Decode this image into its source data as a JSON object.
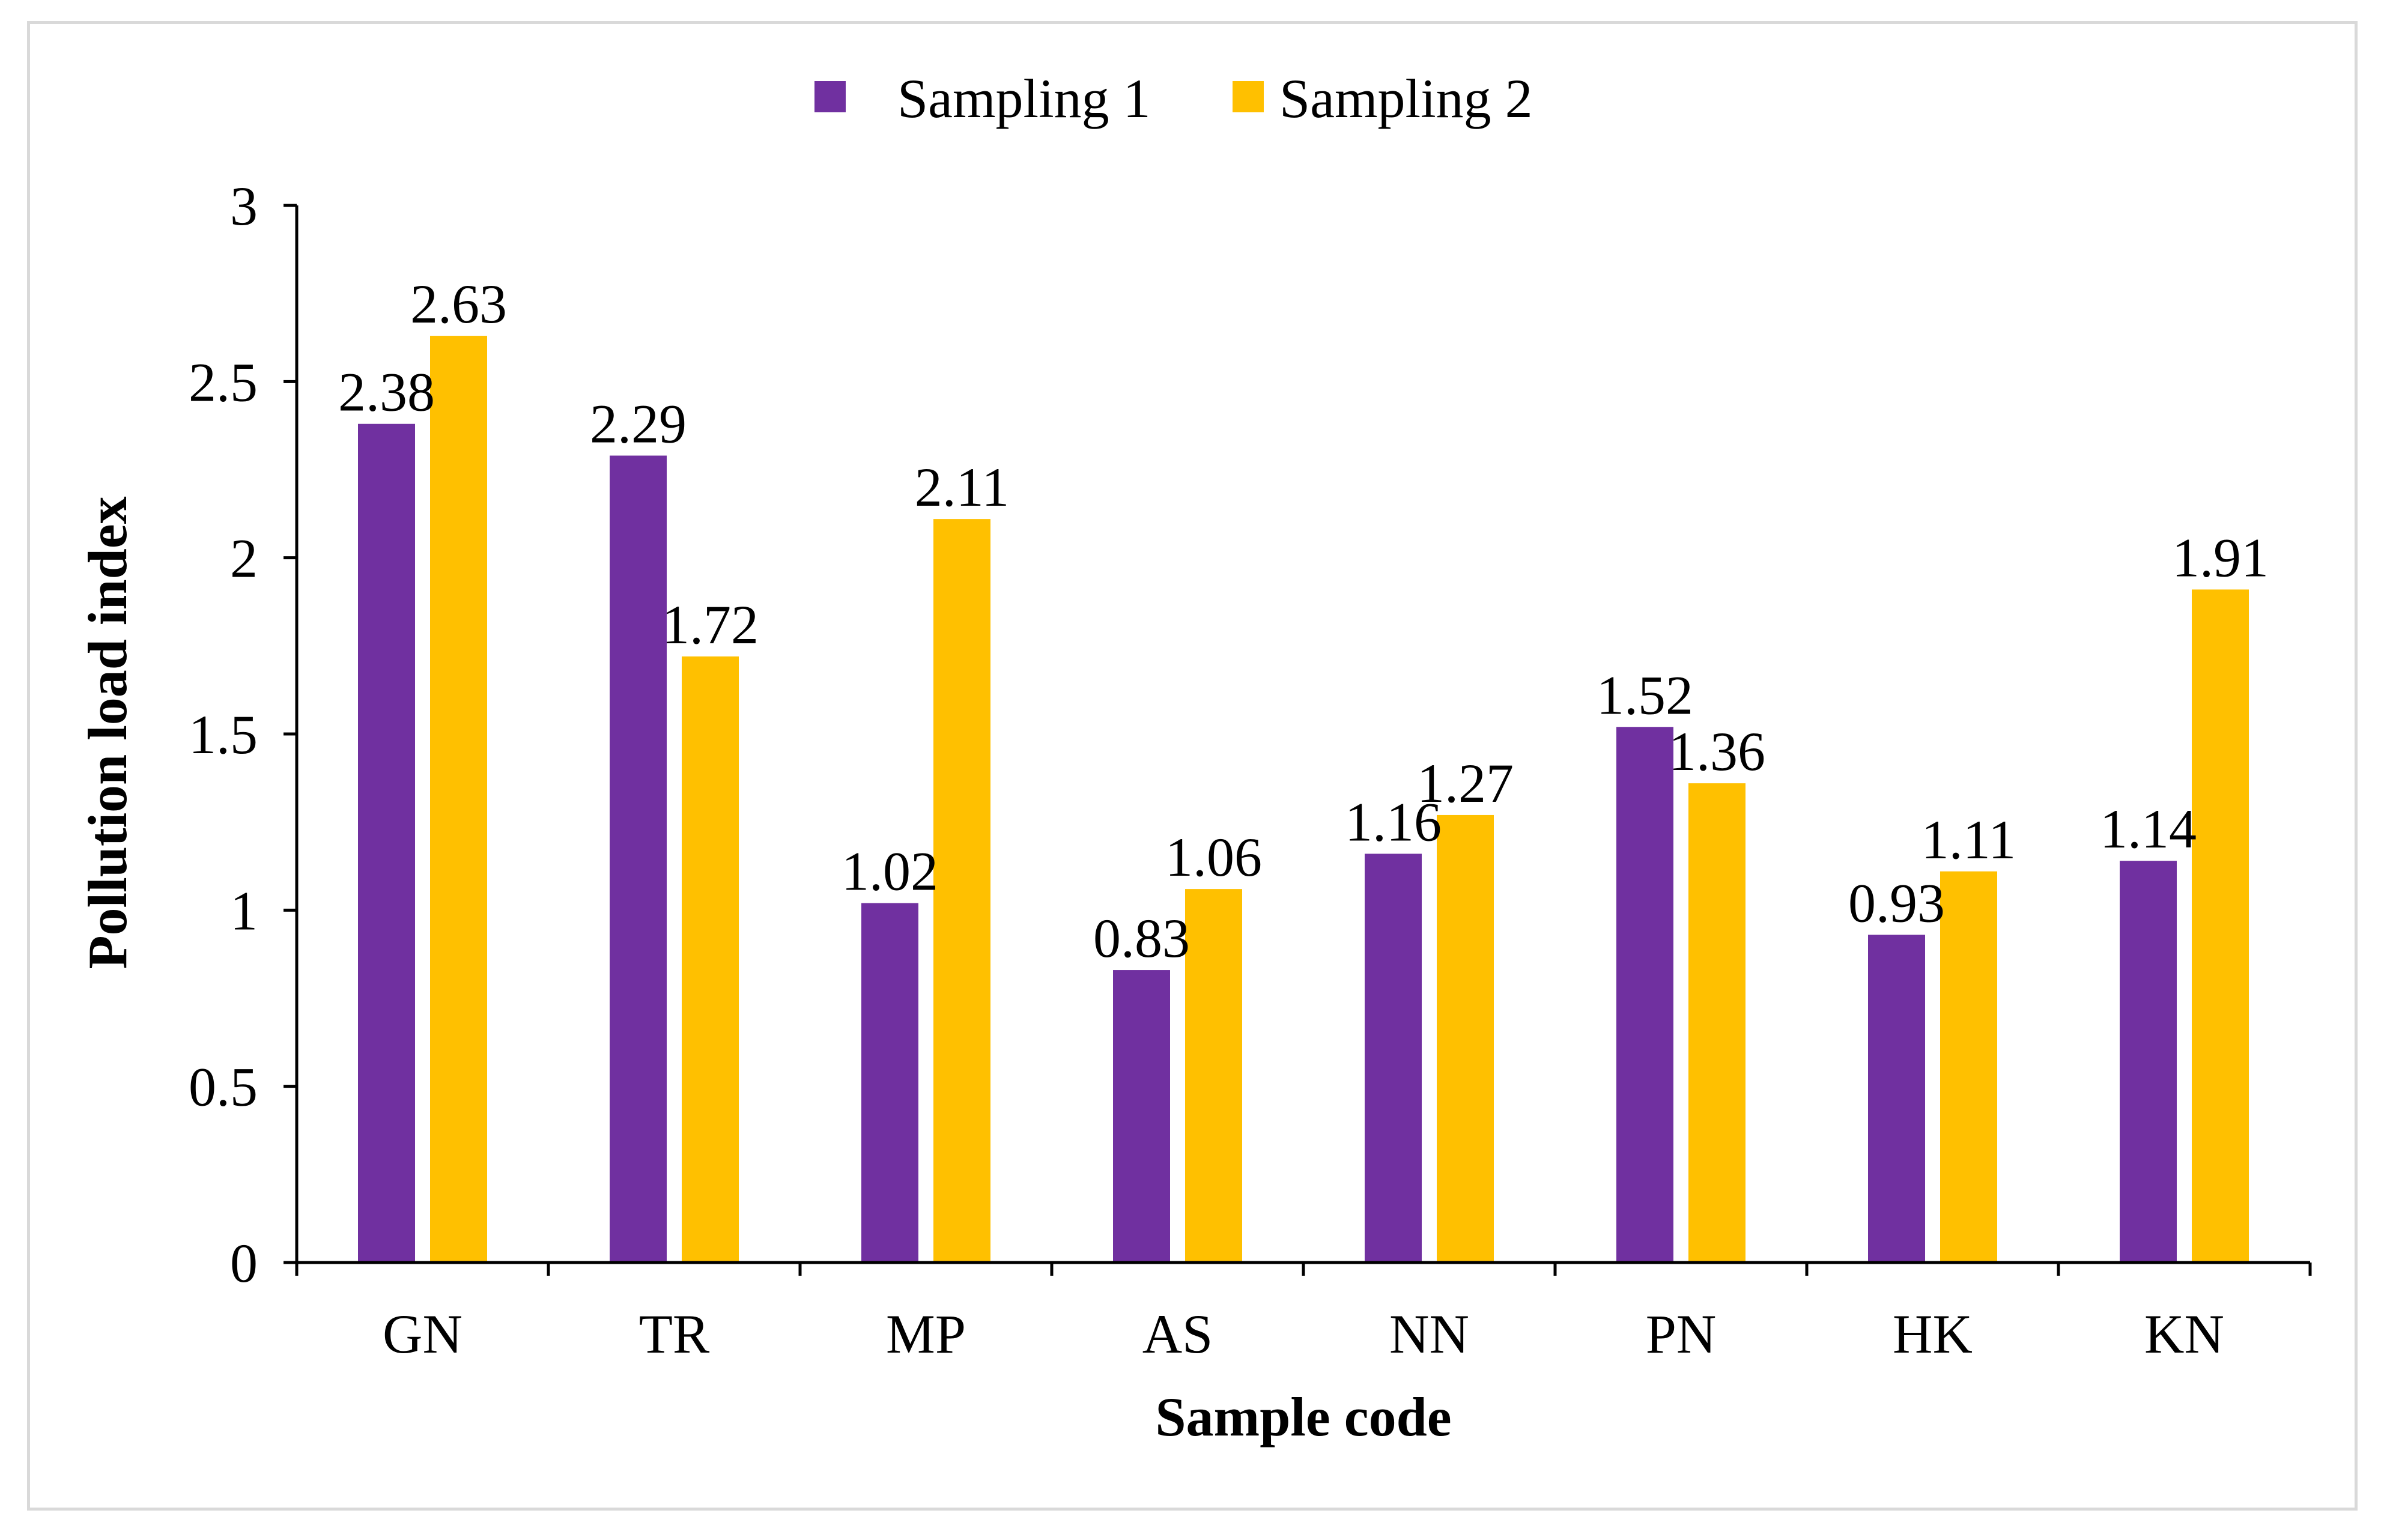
{
  "chart_data": {
    "type": "bar",
    "title": "",
    "xlabel": "Sample code",
    "ylabel": "Pollution load index",
    "ylim": [
      0,
      3
    ],
    "yticks": [
      0,
      0.5,
      1,
      1.5,
      2,
      2.5,
      3
    ],
    "ytick_labels": [
      "0",
      "0.5",
      "1",
      "1.5",
      "2",
      "2.5",
      "3"
    ],
    "grid": false,
    "legend_position": "top-center",
    "categories": [
      "GN",
      "TR",
      "MP",
      "AS",
      "NN",
      "PN",
      "HK",
      "KN"
    ],
    "series": [
      {
        "name": "Sampling 1",
        "color": "#7030A0",
        "values": [
          2.38,
          2.29,
          1.02,
          0.83,
          1.16,
          1.52,
          0.93,
          1.14
        ],
        "labels": [
          "2.38",
          "2.29",
          "1.02",
          "0.83",
          "1.16",
          "1.52",
          "0.93",
          "1.14"
        ]
      },
      {
        "name": "Sampling 2",
        "color": "#FFC000",
        "values": [
          2.63,
          1.72,
          2.11,
          1.06,
          1.27,
          1.36,
          1.11,
          1.91
        ],
        "labels": [
          "2.63",
          "1.72",
          "2.11",
          "1.06",
          "1.27",
          "1.36",
          "1.11",
          "1.91"
        ]
      }
    ]
  }
}
